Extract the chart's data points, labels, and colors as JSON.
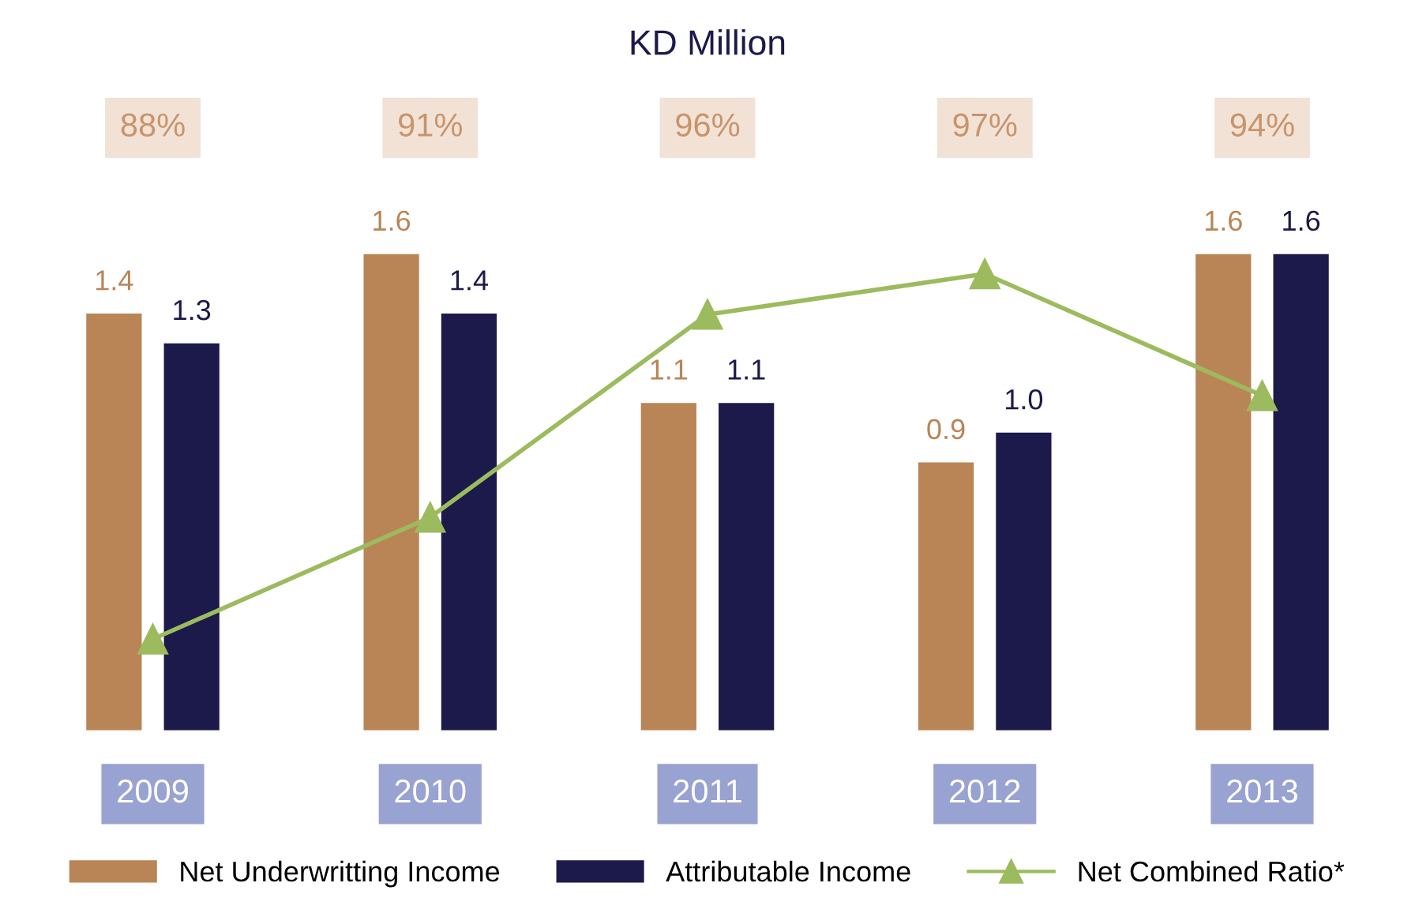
{
  "chart_data": {
    "type": "bar",
    "title": "KD Million",
    "categories": [
      "2009",
      "2010",
      "2011",
      "2012",
      "2013"
    ],
    "series": [
      {
        "name": "Net Underwritting Income",
        "color": "#b98556",
        "values": [
          1.4,
          1.6,
          1.1,
          0.9,
          1.6
        ],
        "value_labels": [
          "1.4",
          "1.6",
          "1.1",
          "0.9",
          "1.6"
        ]
      },
      {
        "name": "Attributable Income",
        "color": "#1c1a4a",
        "values": [
          1.3,
          1.4,
          1.1,
          1.0,
          1.6
        ],
        "value_labels": [
          "1.3",
          "1.4",
          "1.1",
          "1.0",
          "1.6"
        ]
      },
      {
        "name": "Net Combined Ratio*",
        "type": "line",
        "axis": "y2",
        "color": "#9cbb5e",
        "values": [
          88,
          91,
          96,
          97,
          94
        ],
        "value_labels": [
          "88%",
          "91%",
          "96%",
          "97%",
          "94%"
        ]
      }
    ],
    "tick_labels": "x",
    "marker": "triangle",
    "legend": "bottom",
    "grid": false
  }
}
